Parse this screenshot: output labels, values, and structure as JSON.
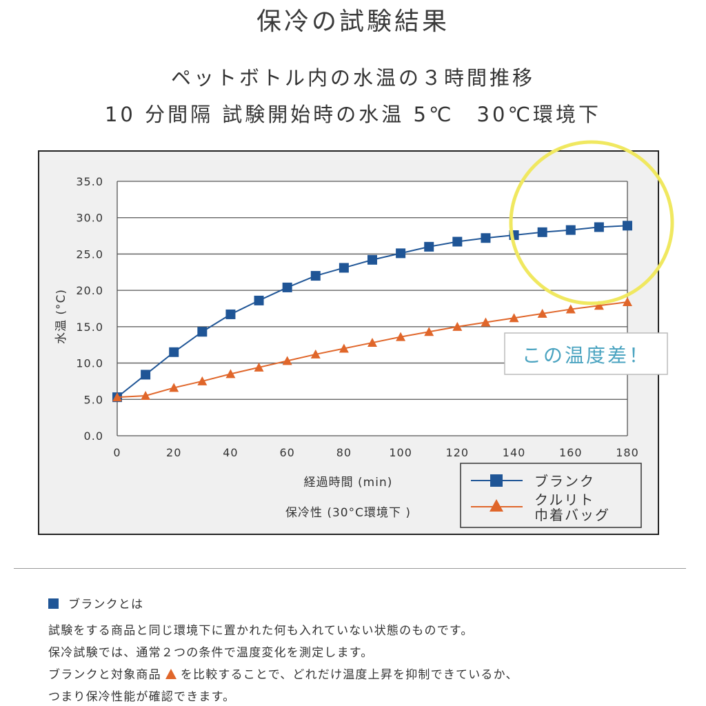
{
  "title": "保冷の試験結果",
  "subtitle1": "ペットボトル内の水温の３時間推移",
  "subtitle2": "10 分間隔 試験開始時の水温 5℃　30℃環境下",
  "chart_data": {
    "type": "line",
    "xlabel": "経過時間 (min)",
    "xlabel2": "保冷性 (30°C環境下 )",
    "ylabel": "水温 (°C)",
    "xlim": [
      0,
      180
    ],
    "ylim": [
      0,
      35
    ],
    "x_ticks": [
      0,
      20,
      40,
      60,
      80,
      100,
      120,
      140,
      160,
      180
    ],
    "y_ticks": [
      "0.0",
      "5.0",
      "10.0",
      "15.0",
      "20.0",
      "25.0",
      "30.0",
      "35.0"
    ],
    "grid": "horizontal",
    "legend_position": "bottom-right",
    "x": [
      0,
      10,
      20,
      30,
      40,
      50,
      60,
      70,
      80,
      90,
      100,
      110,
      120,
      130,
      140,
      150,
      160,
      170,
      180
    ],
    "series": [
      {
        "name": "ブランク",
        "color": "#1f5596",
        "marker": "square",
        "values": [
          5.3,
          8.4,
          11.5,
          14.3,
          16.7,
          18.6,
          20.4,
          22.0,
          23.1,
          24.2,
          25.1,
          26.0,
          26.7,
          27.2,
          27.6,
          28.0,
          28.3,
          28.7,
          28.9
        ]
      },
      {
        "name": "クルリト\n巾着バッグ",
        "color": "#e0662a",
        "marker": "triangle",
        "values": [
          5.3,
          5.5,
          6.6,
          7.5,
          8.5,
          9.4,
          10.3,
          11.2,
          12.0,
          12.8,
          13.6,
          14.3,
          15.0,
          15.6,
          16.2,
          16.8,
          17.4,
          17.9,
          18.4
        ]
      }
    ],
    "annotation": "この温度差！",
    "highlight_color": "#f0e860",
    "annotation_color": "#4aa3c0"
  },
  "notes": {
    "heading": "ブランクとは",
    "line1": "試験をする商品と同じ環境下に置かれた何も入れていない状態のものです。",
    "line2": "保冷試験では、通常２つの条件で温度変化を測定します。",
    "line3a": "ブランクと対象商品",
    "line3b": "を比較することで、どれだけ温度上昇を抑制できているか、",
    "line4": "つまり保冷性能が確認できます。"
  }
}
